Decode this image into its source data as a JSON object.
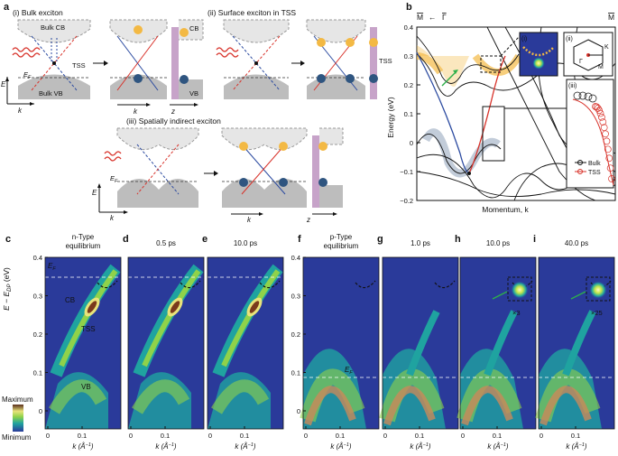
{
  "panels": {
    "a": "a",
    "b": "b",
    "c": "c",
    "d": "d",
    "e": "e",
    "f": "f",
    "g": "g",
    "h": "h",
    "i": "i"
  },
  "panel_a": {
    "title_i": "(i) Bulk exciton",
    "title_ii": "(ii) Surface exciton in TSS",
    "title_iii": "(iii) Spatially indirect exciton",
    "bulk_cb": "Bulk CB",
    "bulk_vb": "Bulk VB",
    "tss": "TSS",
    "cb": "CB",
    "vb": "VB",
    "tss_side": "TSS",
    "ef": "E",
    "ef_sub": "F",
    "e_axis": "E",
    "k_axis": "k",
    "z_axis": "z"
  },
  "panel_b": {
    "m_left": "M",
    "gamma": "Γ",
    "m_right": "M",
    "arrow": "←",
    "ylabel": "Energy (eV)",
    "xlabel": "Momentum, k",
    "yticks": [
      "0.4",
      "0.3",
      "0.2",
      "0.1",
      "0",
      "−0.1",
      "−0.2"
    ],
    "inset_i": "(i)",
    "inset_ii": "(ii)",
    "inset_iii": "(iii)",
    "bz_k": "K",
    "bz_m": "M",
    "bz_g": "Γ",
    "legend_bulk": "Bulk",
    "legend_tss": "TSS"
  },
  "arpes": {
    "ylabel": "E − E",
    "ylabel_sub": "DP",
    "ylabel_unit": " (eV)",
    "yticks": [
      "0.4",
      "0.3",
      "0.2",
      "0.1",
      "0"
    ],
    "xticks": [
      "0",
      "0.1"
    ],
    "xlabel": "k (Å",
    "xlabel_sup": "−1",
    "xlabel_end": ")",
    "titles": {
      "c": [
        "n-Type",
        "equilibrium"
      ],
      "d": [
        "0.5 ps"
      ],
      "e": [
        "10.0 ps"
      ],
      "f": [
        "p-Type",
        "equilibrium"
      ],
      "g": [
        "1.0 ps"
      ],
      "h": [
        "10.0 ps"
      ],
      "i": [
        "40.0 ps"
      ]
    },
    "labels_c": {
      "ef": "E",
      "ef_sub": "F",
      "cb": "CB",
      "tss": "TSS",
      "vb": "VB"
    },
    "label_f_ef": "E",
    "label_f_ef_sub": "F",
    "mult_h": "×3",
    "mult_i": "×25",
    "colorbar_max": "Maximum",
    "colorbar_min": "Minimum"
  }
}
